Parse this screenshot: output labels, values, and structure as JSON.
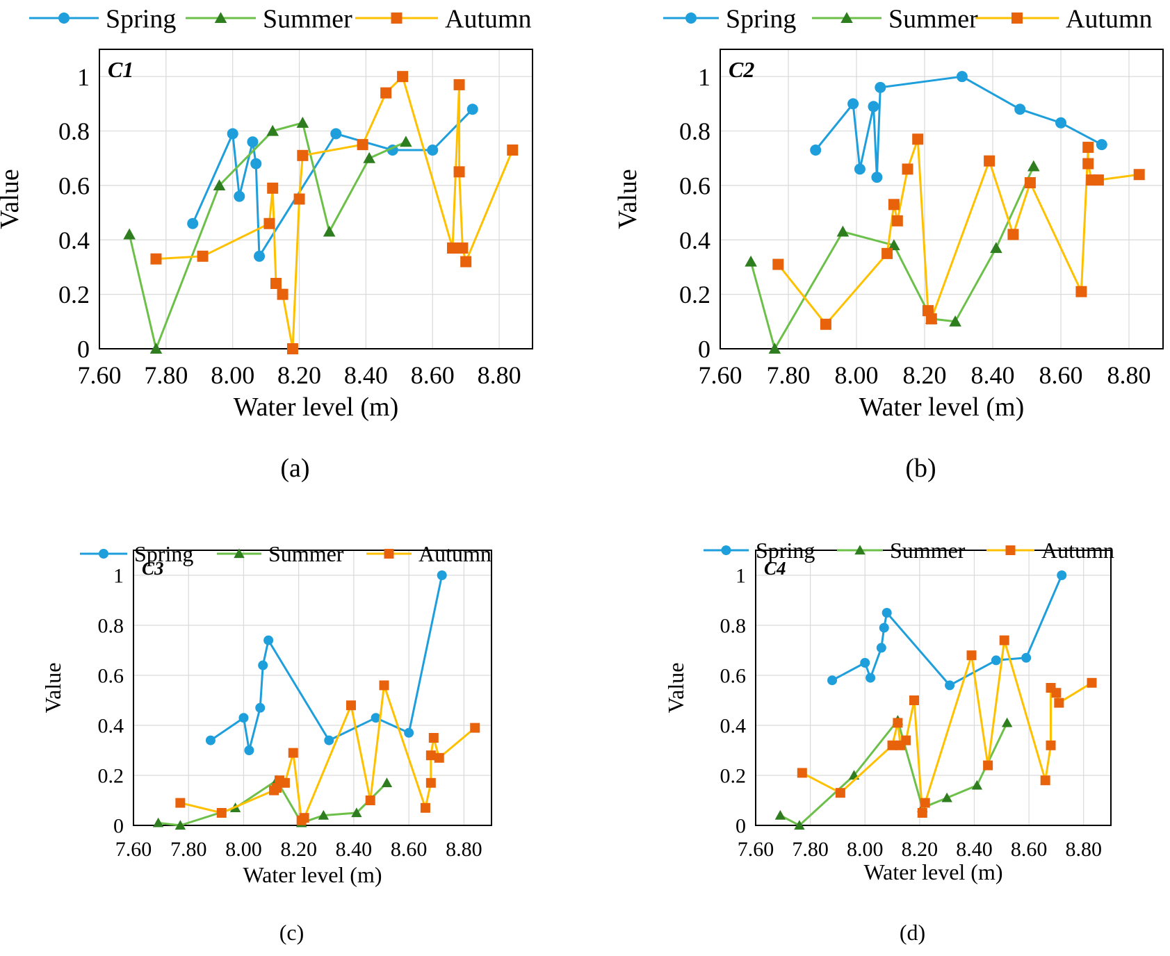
{
  "colors": {
    "spring": "#1e9fdc",
    "summer": "#6cc04a",
    "summer_marker": "#2e7d1e",
    "autumn": "#ffc000",
    "autumn_marker": "#e8620c"
  },
  "chart_data": [
    {
      "type": "line",
      "panel_label": "(a)",
      "tag": "C1",
      "xlabel": "Water level (m)",
      "ylabel": "Value",
      "xlim": [
        7.6,
        8.9
      ],
      "ylim": [
        0,
        1.1
      ],
      "x_ticks": [
        "7.60",
        "7.80",
        "8.00",
        "8.20",
        "8.40",
        "8.60",
        "8.80"
      ],
      "y_ticks": [
        "0",
        "0.2",
        "0.4",
        "0.6",
        "0.8",
        "1"
      ],
      "legend": [
        "Spring",
        "Summer",
        "Autumn"
      ],
      "series": [
        {
          "name": "Spring",
          "marker": "circle",
          "points": [
            [
              7.88,
              0.46
            ],
            [
              8.0,
              0.79
            ],
            [
              8.02,
              0.56
            ],
            [
              8.06,
              0.76
            ],
            [
              8.07,
              0.68
            ],
            [
              8.08,
              0.34
            ],
            [
              8.31,
              0.79
            ],
            [
              8.48,
              0.73
            ],
            [
              8.6,
              0.73
            ],
            [
              8.72,
              0.88
            ]
          ]
        },
        {
          "name": "Summer",
          "marker": "triangle",
          "points": [
            [
              7.69,
              0.42
            ],
            [
              7.77,
              0.0
            ],
            [
              7.96,
              0.6
            ],
            [
              8.12,
              0.8
            ],
            [
              8.21,
              0.83
            ],
            [
              8.29,
              0.43
            ],
            [
              8.41,
              0.7
            ],
            [
              8.52,
              0.76
            ]
          ]
        },
        {
          "name": "Autumn",
          "marker": "square",
          "points": [
            [
              7.77,
              0.33
            ],
            [
              7.91,
              0.34
            ],
            [
              8.11,
              0.46
            ],
            [
              8.12,
              0.59
            ],
            [
              8.13,
              0.24
            ],
            [
              8.15,
              0.2
            ],
            [
              8.18,
              0.0
            ],
            [
              8.2,
              0.55
            ],
            [
              8.21,
              0.71
            ],
            [
              8.39,
              0.75
            ],
            [
              8.46,
              0.94
            ],
            [
              8.51,
              1.0
            ],
            [
              8.66,
              0.37
            ],
            [
              8.68,
              0.97
            ],
            [
              8.68,
              0.65
            ],
            [
              8.69,
              0.37
            ],
            [
              8.7,
              0.32
            ],
            [
              8.84,
              0.73
            ]
          ]
        }
      ]
    },
    {
      "type": "line",
      "panel_label": "(b)",
      "tag": "C2",
      "xlabel": "Water level (m)",
      "ylabel": "Value",
      "xlim": [
        7.6,
        8.9
      ],
      "ylim": [
        0,
        1.1
      ],
      "x_ticks": [
        "7.60",
        "7.80",
        "8.00",
        "8.20",
        "8.40",
        "8.60",
        "8.80"
      ],
      "y_ticks": [
        "0",
        "0.2",
        "0.4",
        "0.6",
        "0.8",
        "1"
      ],
      "legend": [
        "Spring",
        "Summer",
        "Autumn"
      ],
      "series": [
        {
          "name": "Spring",
          "marker": "circle",
          "points": [
            [
              7.88,
              0.73
            ],
            [
              7.99,
              0.9
            ],
            [
              8.01,
              0.66
            ],
            [
              8.05,
              0.89
            ],
            [
              8.06,
              0.63
            ],
            [
              8.07,
              0.96
            ],
            [
              8.31,
              1.0
            ],
            [
              8.48,
              0.88
            ],
            [
              8.6,
              0.83
            ],
            [
              8.72,
              0.75
            ]
          ]
        },
        {
          "name": "Summer",
          "marker": "triangle",
          "points": [
            [
              7.69,
              0.32
            ],
            [
              7.76,
              0.0
            ],
            [
              7.96,
              0.43
            ],
            [
              8.11,
              0.38
            ],
            [
              8.22,
              0.11
            ],
            [
              8.29,
              0.1
            ],
            [
              8.41,
              0.37
            ],
            [
              8.52,
              0.67
            ]
          ]
        },
        {
          "name": "Autumn",
          "marker": "square",
          "points": [
            [
              7.77,
              0.31
            ],
            [
              7.91,
              0.09
            ],
            [
              8.09,
              0.35
            ],
            [
              8.11,
              0.53
            ],
            [
              8.12,
              0.47
            ],
            [
              8.15,
              0.66
            ],
            [
              8.18,
              0.77
            ],
            [
              8.21,
              0.14
            ],
            [
              8.22,
              0.11
            ],
            [
              8.39,
              0.69
            ],
            [
              8.46,
              0.42
            ],
            [
              8.51,
              0.61
            ],
            [
              8.66,
              0.21
            ],
            [
              8.68,
              0.74
            ],
            [
              8.68,
              0.68
            ],
            [
              8.69,
              0.62
            ],
            [
              8.71,
              0.62
            ],
            [
              8.83,
              0.64
            ]
          ]
        }
      ]
    },
    {
      "type": "line",
      "panel_label": "(c)",
      "tag": "C3",
      "xlabel": "Water level (m)",
      "ylabel": "Value",
      "xlim": [
        7.6,
        8.9
      ],
      "ylim": [
        0,
        1.1
      ],
      "x_ticks": [
        "7.60",
        "7.80",
        "8.00",
        "8.20",
        "8.40",
        "8.60",
        "8.80"
      ],
      "y_ticks": [
        "0",
        "0.2",
        "0.4",
        "0.6",
        "0.8",
        "1"
      ],
      "legend": [
        "Spring",
        "Summer",
        "Autumn"
      ],
      "series": [
        {
          "name": "Spring",
          "marker": "circle",
          "points": [
            [
              7.88,
              0.34
            ],
            [
              8.0,
              0.43
            ],
            [
              8.02,
              0.3
            ],
            [
              8.06,
              0.47
            ],
            [
              8.07,
              0.64
            ],
            [
              8.09,
              0.74
            ],
            [
              8.31,
              0.34
            ],
            [
              8.48,
              0.43
            ],
            [
              8.6,
              0.37
            ],
            [
              8.72,
              1.0
            ]
          ]
        },
        {
          "name": "Summer",
          "marker": "triangle",
          "points": [
            [
              7.69,
              0.01
            ],
            [
              7.77,
              0.0
            ],
            [
              7.97,
              0.07
            ],
            [
              8.12,
              0.18
            ],
            [
              8.21,
              0.01
            ],
            [
              8.29,
              0.04
            ],
            [
              8.41,
              0.05
            ],
            [
              8.52,
              0.17
            ]
          ]
        },
        {
          "name": "Autumn",
          "marker": "square",
          "points": [
            [
              7.77,
              0.09
            ],
            [
              7.92,
              0.05
            ],
            [
              8.11,
              0.14
            ],
            [
              8.12,
              0.15
            ],
            [
              8.13,
              0.18
            ],
            [
              8.15,
              0.17
            ],
            [
              8.18,
              0.29
            ],
            [
              8.21,
              0.02
            ],
            [
              8.22,
              0.03
            ],
            [
              8.39,
              0.48
            ],
            [
              8.46,
              0.1
            ],
            [
              8.51,
              0.56
            ],
            [
              8.66,
              0.07
            ],
            [
              8.68,
              0.17
            ],
            [
              8.68,
              0.28
            ],
            [
              8.69,
              0.35
            ],
            [
              8.71,
              0.27
            ],
            [
              8.84,
              0.39
            ]
          ]
        }
      ]
    },
    {
      "type": "line",
      "panel_label": "(d)",
      "tag": "C4",
      "xlabel": "Water level (m)",
      "ylabel": "Value",
      "xlim": [
        7.6,
        8.9
      ],
      "ylim": [
        0,
        1.1
      ],
      "x_ticks": [
        "7.60",
        "7.80",
        "8.00",
        "8.20",
        "8.40",
        "8.60",
        "8.80"
      ],
      "y_ticks": [
        "0",
        "0.2",
        "0.4",
        "0.6",
        "0.8",
        "1"
      ],
      "legend": [
        "Spring",
        "Summer",
        "Autumn"
      ],
      "series": [
        {
          "name": "Spring",
          "marker": "circle",
          "points": [
            [
              7.88,
              0.58
            ],
            [
              8.0,
              0.65
            ],
            [
              8.02,
              0.59
            ],
            [
              8.06,
              0.71
            ],
            [
              8.07,
              0.79
            ],
            [
              8.08,
              0.85
            ],
            [
              8.31,
              0.56
            ],
            [
              8.48,
              0.66
            ],
            [
              8.59,
              0.67
            ],
            [
              8.72,
              1.0
            ]
          ]
        },
        {
          "name": "Summer",
          "marker": "triangle",
          "points": [
            [
              7.69,
              0.04
            ],
            [
              7.76,
              0.0
            ],
            [
              7.96,
              0.2
            ],
            [
              8.12,
              0.42
            ],
            [
              8.21,
              0.07
            ],
            [
              8.3,
              0.11
            ],
            [
              8.41,
              0.16
            ],
            [
              8.52,
              0.41
            ]
          ]
        },
        {
          "name": "Autumn",
          "marker": "square",
          "points": [
            [
              7.77,
              0.21
            ],
            [
              7.91,
              0.13
            ],
            [
              8.1,
              0.32
            ],
            [
              8.12,
              0.41
            ],
            [
              8.13,
              0.32
            ],
            [
              8.15,
              0.34
            ],
            [
              8.18,
              0.5
            ],
            [
              8.21,
              0.05
            ],
            [
              8.22,
              0.09
            ],
            [
              8.39,
              0.68
            ],
            [
              8.45,
              0.24
            ],
            [
              8.51,
              0.74
            ],
            [
              8.66,
              0.18
            ],
            [
              8.68,
              0.32
            ],
            [
              8.68,
              0.55
            ],
            [
              8.7,
              0.53
            ],
            [
              8.71,
              0.49
            ],
            [
              8.83,
              0.57
            ]
          ]
        }
      ]
    }
  ]
}
